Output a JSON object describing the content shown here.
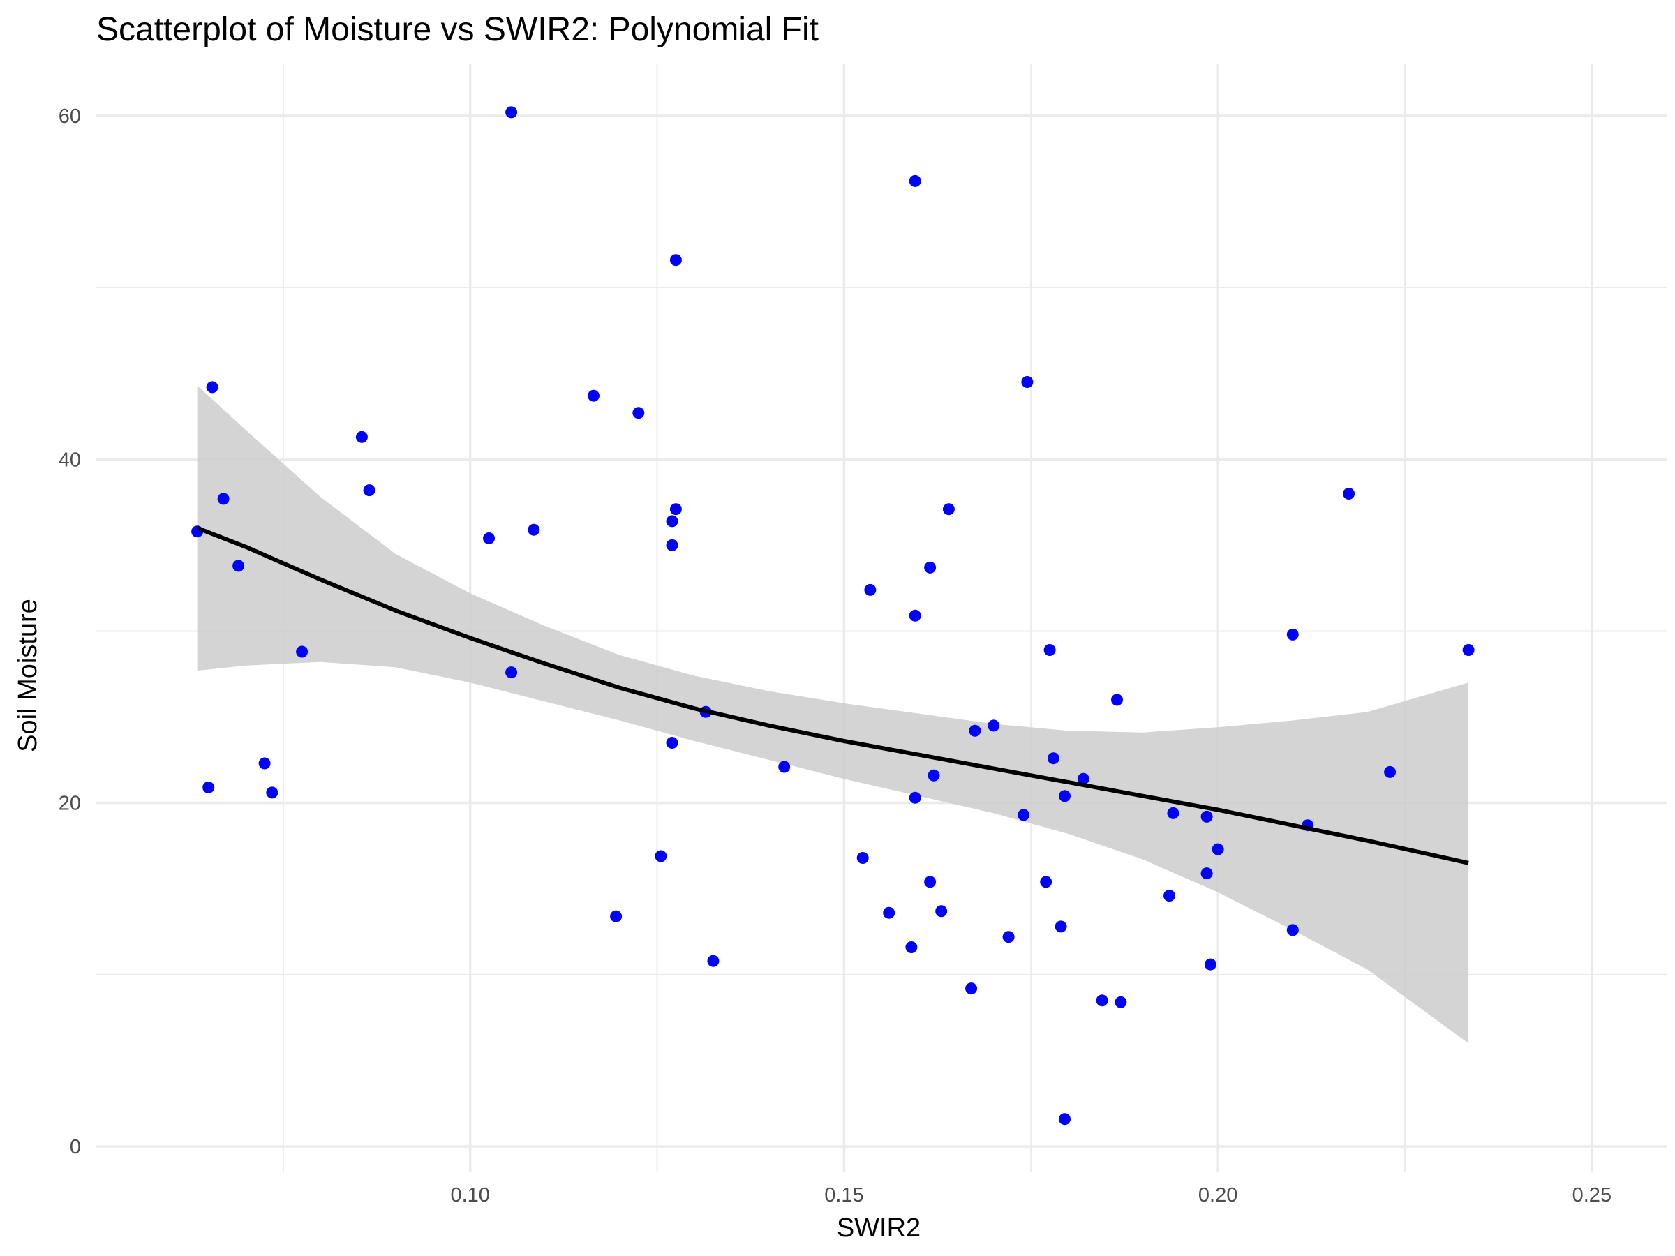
{
  "chart_data": {
    "type": "scatter",
    "title": "Scatterplot of Moisture vs SWIR2: Polynomial Fit",
    "xlabel": "SWIR2",
    "ylabel": "Soil Moisture",
    "xlim": [
      0.05,
      0.26
    ],
    "ylim": [
      -1.5,
      63
    ],
    "x_ticks": [
      {
        "value": 0.1,
        "label": "0.10"
      },
      {
        "value": 0.15,
        "label": "0.15"
      },
      {
        "value": 0.2,
        "label": "0.20"
      },
      {
        "value": 0.25,
        "label": "0.25"
      }
    ],
    "x_minor_ticks": [
      0.075,
      0.125,
      0.175,
      0.225
    ],
    "y_ticks": [
      {
        "value": 0,
        "label": "0"
      },
      {
        "value": 20,
        "label": "20"
      },
      {
        "value": 40,
        "label": "40"
      },
      {
        "value": 60,
        "label": "60"
      }
    ],
    "y_minor_ticks": [
      10,
      30,
      50
    ],
    "grid": true,
    "legend": "none",
    "colors": {
      "points": "#0000ff",
      "fit_line": "#000000",
      "confidence_band": "#cccccc",
      "grid": "#ebebeb"
    },
    "points": {
      "x": [
        0.0635,
        0.065,
        0.0655,
        0.067,
        0.069,
        0.0725,
        0.0735,
        0.0775,
        0.0855,
        0.0865,
        0.1025,
        0.1055,
        0.1055,
        0.1085,
        0.1165,
        0.1195,
        0.1225,
        0.1255,
        0.127,
        0.127,
        0.127,
        0.1275,
        0.1275,
        0.1315,
        0.1325,
        0.142,
        0.1525,
        0.1535,
        0.156,
        0.159,
        0.1595,
        0.1595,
        0.1595,
        0.1615,
        0.1615,
        0.162,
        0.163,
        0.164,
        0.167,
        0.1675,
        0.17,
        0.172,
        0.174,
        0.1745,
        0.177,
        0.1775,
        0.178,
        0.179,
        0.1795,
        0.1795,
        0.182,
        0.1845,
        0.1865,
        0.187,
        0.1935,
        0.194,
        0.1985,
        0.1985,
        0.199,
        0.2,
        0.21,
        0.21,
        0.212,
        0.2175,
        0.223,
        0.2335
      ],
      "y": [
        35.8,
        20.9,
        44.2,
        37.7,
        33.8,
        22.3,
        20.6,
        28.8,
        41.3,
        38.2,
        35.4,
        60.2,
        27.6,
        35.9,
        43.7,
        13.4,
        42.7,
        16.9,
        23.5,
        35.0,
        36.4,
        37.1,
        51.6,
        25.3,
        10.8,
        22.1,
        16.8,
        32.4,
        13.6,
        11.6,
        20.3,
        30.9,
        56.2,
        15.4,
        33.7,
        21.6,
        13.7,
        37.1,
        9.2,
        24.2,
        24.5,
        12.2,
        19.3,
        44.5,
        15.4,
        28.9,
        22.6,
        12.8,
        20.4,
        1.6,
        21.4,
        8.5,
        26.0,
        8.4,
        14.6,
        19.4,
        19.2,
        15.9,
        10.6,
        17.3,
        29.8,
        12.6,
        18.7,
        38.0,
        21.8,
        28.9
      ]
    },
    "fit": {
      "x": [
        0.0635,
        0.07,
        0.08,
        0.09,
        0.1,
        0.11,
        0.12,
        0.13,
        0.14,
        0.15,
        0.16,
        0.17,
        0.18,
        0.19,
        0.2,
        0.21,
        0.22,
        0.2335
      ],
      "y": [
        36.0,
        34.9,
        33.0,
        31.2,
        29.6,
        28.1,
        26.7,
        25.5,
        24.5,
        23.6,
        22.8,
        22.0,
        21.2,
        20.4,
        19.6,
        18.7,
        17.8,
        16.5
      ],
      "lower": [
        27.7,
        28.0,
        28.2,
        27.9,
        27.0,
        25.9,
        24.8,
        23.6,
        22.5,
        21.4,
        20.4,
        19.4,
        18.2,
        16.7,
        14.8,
        12.6,
        10.3,
        6.0
      ],
      "upper": [
        44.3,
        41.7,
        37.8,
        34.5,
        32.2,
        30.3,
        28.6,
        27.4,
        26.5,
        25.8,
        25.2,
        24.6,
        24.2,
        24.1,
        24.4,
        24.8,
        25.3,
        27.0
      ]
    }
  }
}
